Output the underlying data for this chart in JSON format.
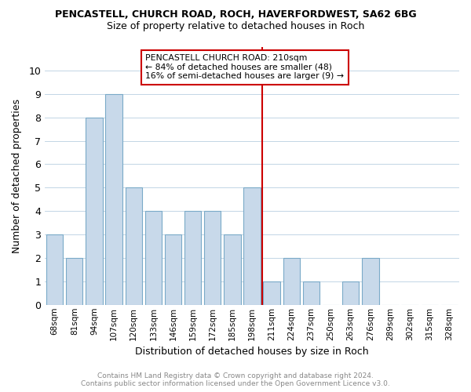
{
  "title": "PENCASTELL, CHURCH ROAD, ROCH, HAVERFORDWEST, SA62 6BG",
  "subtitle": "Size of property relative to detached houses in Roch",
  "xlabel": "Distribution of detached houses by size in Roch",
  "ylabel": "Number of detached properties",
  "footer_line1": "Contains HM Land Registry data © Crown copyright and database right 2024.",
  "footer_line2": "Contains public sector information licensed under the Open Government Licence v3.0.",
  "categories": [
    "68sqm",
    "81sqm",
    "94sqm",
    "107sqm",
    "120sqm",
    "133sqm",
    "146sqm",
    "159sqm",
    "172sqm",
    "185sqm",
    "198sqm",
    "211sqm",
    "224sqm",
    "237sqm",
    "250sqm",
    "263sqm",
    "276sqm",
    "289sqm",
    "302sqm",
    "315sqm",
    "328sqm"
  ],
  "values": [
    3,
    2,
    8,
    9,
    5,
    4,
    3,
    4,
    4,
    3,
    5,
    1,
    2,
    1,
    0,
    1,
    2,
    0,
    0,
    0,
    0
  ],
  "bar_color": "#c8d9ea",
  "bar_edge_color": "#7aaac8",
  "reference_line_color": "#cc0000",
  "annotation_box_color": "#cc0000",
  "annotation_title": "PENCASTELL CHURCH ROAD: 210sqm",
  "annotation_line1": "← 84% of detached houses are smaller (48)",
  "annotation_line2": "16% of semi-detached houses are larger (9) →",
  "ylim": [
    0,
    11
  ],
  "yticks": [
    0,
    1,
    2,
    3,
    4,
    5,
    6,
    7,
    8,
    9,
    10,
    11
  ],
  "grid_color": "#b8cfe0",
  "background_color": "#ffffff",
  "ref_bar_index": 11
}
